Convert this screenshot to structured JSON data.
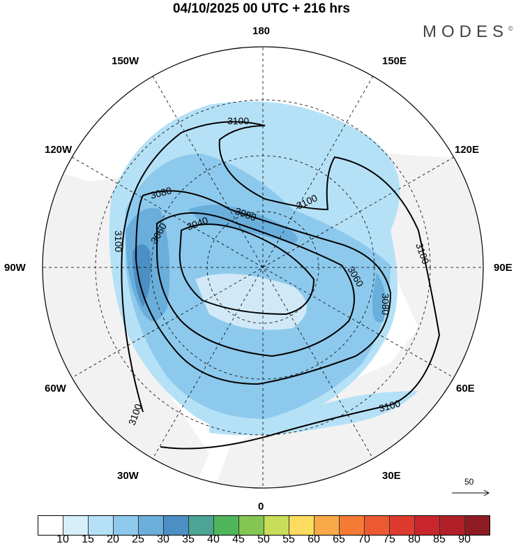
{
  "title": "04/10/2025  00 UTC  + 216 hrs",
  "logo": "MODES",
  "logo_mark": "©",
  "longitude_labels": {
    "top": "180",
    "bottom": "0",
    "left": "90W",
    "right": "90E",
    "upper_left_1": "150W",
    "upper_left_2": "120W",
    "upper_right_1": "150E",
    "upper_right_2": "120E",
    "lower_left_1": "60W",
    "lower_left_2": "30W",
    "lower_right_1": "60E",
    "lower_right_2": "30E"
  },
  "contour_labels": [
    "3100",
    "3080",
    "3080",
    "3060",
    "3040",
    "3100",
    "3100",
    "3100",
    "3060",
    "3080",
    "3100",
    "3100"
  ],
  "reference_vector": "50",
  "colorbar": {
    "ticks": [
      "10",
      "15",
      "20",
      "25",
      "30",
      "35",
      "40",
      "45",
      "50",
      "55",
      "60",
      "65",
      "70",
      "75",
      "80",
      "85",
      "90"
    ],
    "colors": [
      "#ffffff",
      "#d7effb",
      "#b5e1f7",
      "#8dc9ec",
      "#6aaedb",
      "#4c8fc4",
      "#4da595",
      "#4fb65c",
      "#83c653",
      "#c8dd5a",
      "#fbdc5e",
      "#f8a948",
      "#f57a34",
      "#ec5a31",
      "#de3b2f",
      "#c9262d",
      "#b11f28",
      "#8e1c22"
    ]
  }
}
